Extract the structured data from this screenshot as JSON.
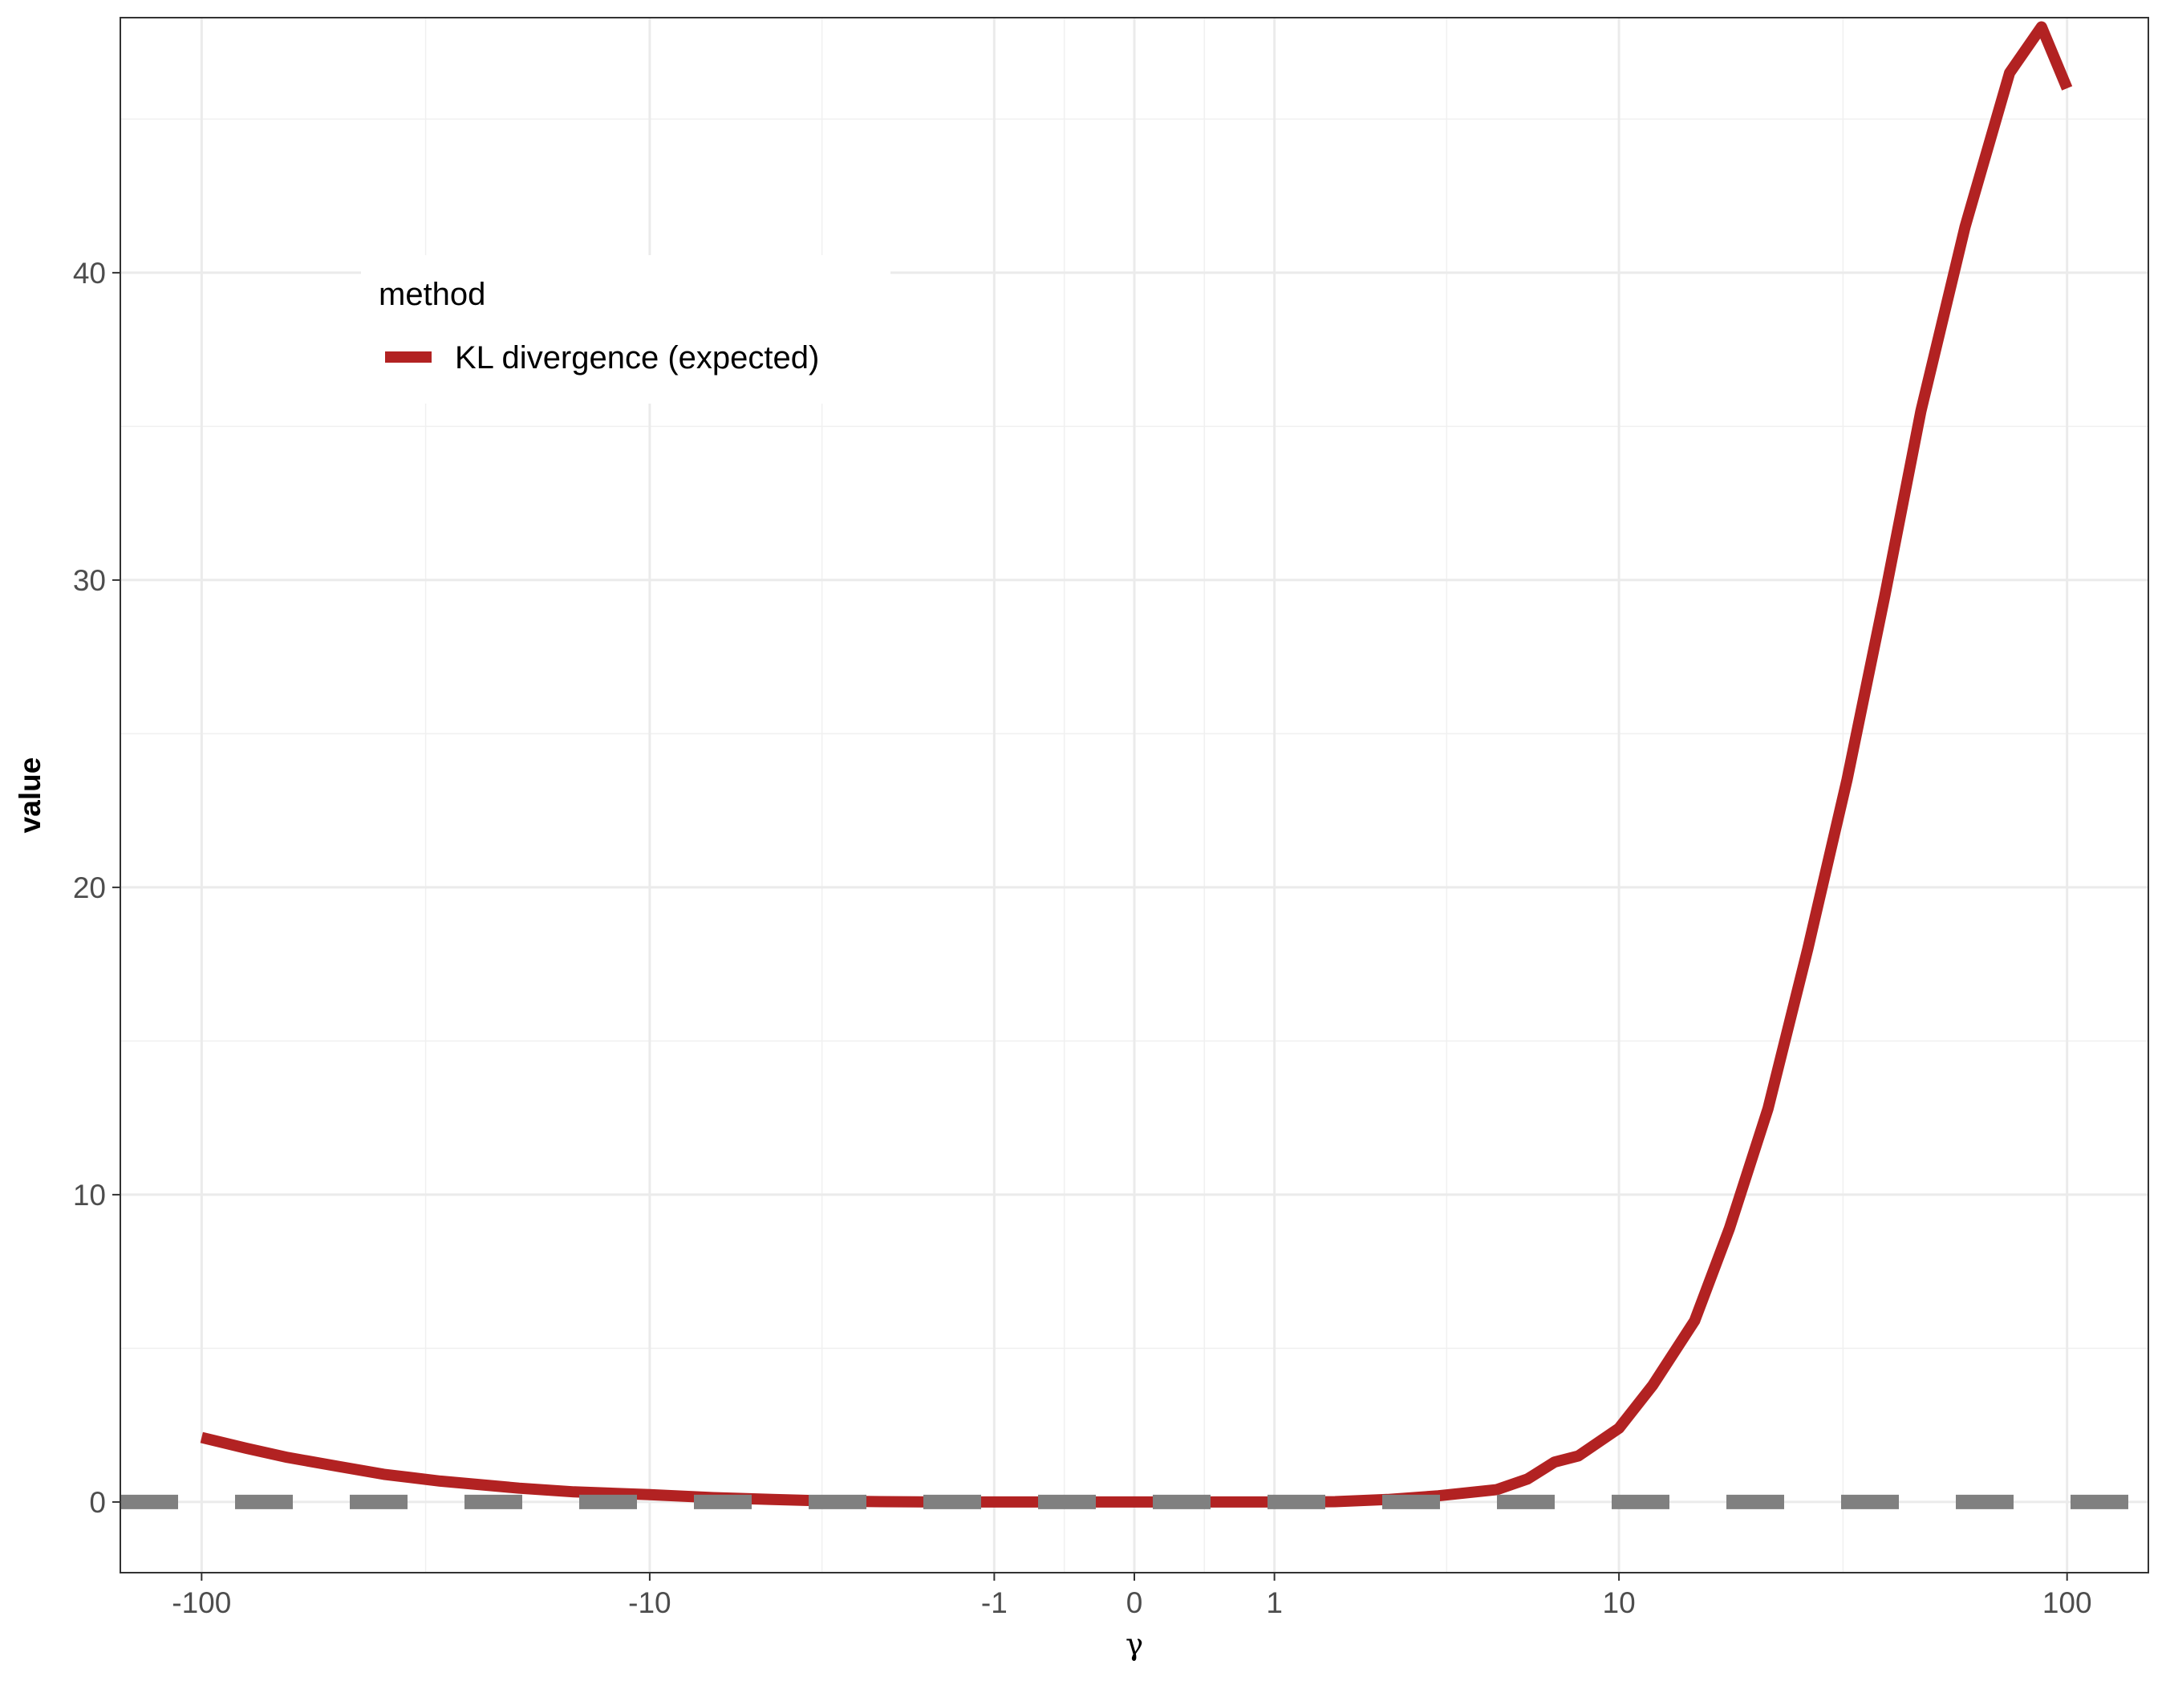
{
  "chart_data": {
    "type": "line",
    "xlabel": "γ",
    "ylabel": "value",
    "x_scale": "pseudo-log (symmetric)",
    "x_ticks": [
      -100,
      -10,
      -1,
      0,
      1,
      10,
      100
    ],
    "x_tick_labels": [
      "-100",
      "-10",
      "-1",
      "0",
      "1",
      "10",
      "100"
    ],
    "y_ticks": [
      0,
      10,
      20,
      30,
      40
    ],
    "y_tick_labels": [
      "0",
      "10",
      "20",
      "30",
      "40"
    ],
    "xlim": [
      -150,
      150
    ],
    "ylim": [
      -2.3,
      48.3
    ],
    "grid": true,
    "legend": {
      "title": "method",
      "position": "top-left (inside plot)"
    },
    "series": [
      {
        "name": "KL divergence (expected)",
        "color": "#b22222",
        "style": "solid",
        "x": [
          -100,
          -80,
          -65,
          -50,
          -40,
          -30,
          -20,
          -15,
          -10,
          -7,
          -5,
          -3.5,
          -2.5,
          -1.7,
          -1,
          -0.5,
          0,
          0.5,
          1,
          1.7,
          2.5,
          3.5,
          5,
          6,
          7,
          8,
          10,
          12,
          15,
          18,
          22,
          27,
          33,
          40,
          48,
          60,
          75,
          88,
          100
        ],
        "y": [
          2.1,
          1.75,
          1.45,
          1.15,
          0.9,
          0.68,
          0.45,
          0.33,
          0.24,
          0.14,
          0.08,
          0.03,
          0.01,
          0.0,
          0.0,
          0.0,
          0.0,
          0.0,
          0.0,
          0.01,
          0.08,
          0.2,
          0.4,
          0.75,
          1.3,
          1.5,
          2.4,
          3.8,
          5.9,
          8.9,
          12.8,
          18.0,
          23.5,
          29.5,
          35.5,
          41.5,
          46.5,
          48,
          46
        ]
      },
      {
        "name": "",
        "color": "#808080",
        "style": "dashed",
        "x": [
          -150,
          150
        ],
        "y": [
          0,
          0
        ]
      }
    ]
  }
}
